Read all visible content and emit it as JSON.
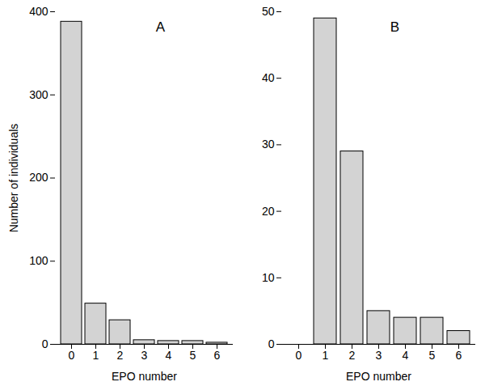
{
  "chart_data": [
    {
      "type": "bar",
      "title": "A",
      "categories": [
        0,
        1,
        2,
        3,
        4,
        5,
        6
      ],
      "values": [
        388,
        49,
        29,
        5,
        4,
        4,
        2
      ],
      "color": "#d3d3d3",
      "xlabel": "EPO number",
      "ylabel": "Number of individuals",
      "ylim": [
        0,
        400
      ],
      "yticks": [
        0,
        100,
        200,
        300,
        400
      ],
      "grid": false
    },
    {
      "type": "bar",
      "title": "B",
      "categories": [
        0,
        1,
        2,
        3,
        4,
        5,
        6
      ],
      "values": [
        null,
        49,
        29,
        5,
        4,
        4,
        2
      ],
      "color": "#d3d3d3",
      "xlabel": "EPO number",
      "ylim": [
        0,
        50
      ],
      "yticks": [
        0,
        10,
        20,
        30,
        40,
        50
      ],
      "grid": false
    }
  ]
}
